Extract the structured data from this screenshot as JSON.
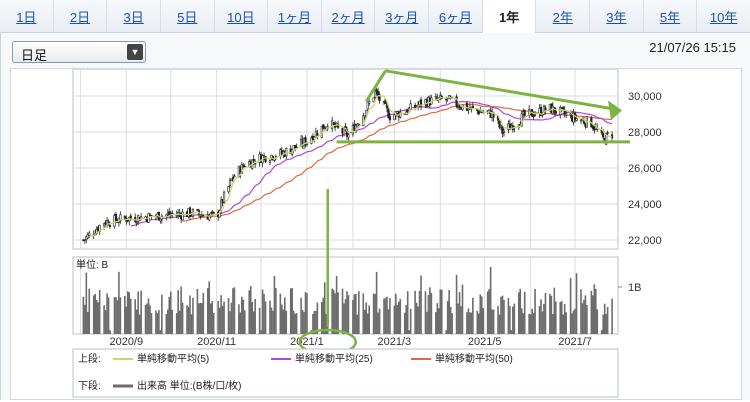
{
  "period_tabs": [
    {
      "label": "1日",
      "active": false
    },
    {
      "label": "2日",
      "active": false
    },
    {
      "label": "3日",
      "active": false
    },
    {
      "label": "5日",
      "active": false
    },
    {
      "label": "10日",
      "active": false
    },
    {
      "label": "1ヶ月",
      "active": false
    },
    {
      "label": "2ヶ月",
      "active": false
    },
    {
      "label": "3ヶ月",
      "active": false
    },
    {
      "label": "6ヶ月",
      "active": false
    },
    {
      "label": "1年",
      "active": true
    },
    {
      "label": "2年",
      "active": false
    },
    {
      "label": "3年",
      "active": false
    },
    {
      "label": "5年",
      "active": false
    },
    {
      "label": "10年",
      "active": false
    }
  ],
  "candle_select": {
    "value": "日足"
  },
  "timestamp": "21/07/26 15:15",
  "chart_data": {
    "type": "candlestick",
    "price_axis": {
      "ticks": [
        "30,000",
        "28,000",
        "26,000",
        "24,000",
        "22,000"
      ],
      "ylim": [
        21500,
        31500
      ]
    },
    "volume_axis": {
      "unit_label": "単位: B",
      "ticks": [
        "1B"
      ]
    },
    "x_ticks": [
      "2020/9",
      "2020/11",
      "2021/1",
      "2021/3",
      "2021/5",
      "2021/7"
    ],
    "price_path": [
      [
        "2020-08-03",
        22000
      ],
      [
        "2020-08-17",
        23000
      ],
      [
        "2020-09-01",
        23200
      ],
      [
        "2020-09-15",
        23300
      ],
      [
        "2020-10-01",
        23400
      ],
      [
        "2020-10-15",
        23500
      ],
      [
        "2020-11-01",
        23300
      ],
      [
        "2020-11-05",
        24200
      ],
      [
        "2020-11-12",
        25500
      ],
      [
        "2020-11-20",
        26200
      ],
      [
        "2020-12-01",
        26600
      ],
      [
        "2020-12-15",
        26800
      ],
      [
        "2020-12-30",
        27400
      ],
      [
        "2021-01-15",
        28500
      ],
      [
        "2021-01-29",
        27800
      ],
      [
        "2021-02-08",
        29000
      ],
      [
        "2021-02-16",
        30200
      ],
      [
        "2021-02-26",
        28900
      ],
      [
        "2021-03-10",
        29200
      ],
      [
        "2021-03-22",
        29700
      ],
      [
        "2021-04-05",
        29800
      ],
      [
        "2021-04-20",
        29300
      ],
      [
        "2021-05-06",
        29000
      ],
      [
        "2021-05-13",
        28000
      ],
      [
        "2021-05-28",
        28900
      ],
      [
        "2021-06-14",
        29300
      ],
      [
        "2021-06-30",
        28800
      ],
      [
        "2021-07-12",
        28500
      ],
      [
        "2021-07-20",
        27600
      ],
      [
        "2021-07-26",
        27900
      ]
    ],
    "legend": {
      "upper_prefix": "上段:",
      "ma5": "単純移動平均(5)",
      "ma25": "単純移動平均(25)",
      "ma50": "単純移動平均(50)",
      "lower_prefix": "下段:",
      "volume": "出来高 単位:(B株/口/枚)"
    },
    "colors": {
      "up": "#ffffff",
      "down": "#222222",
      "ma5": "#c9d66b",
      "ma25": "#b04ad2",
      "ma50": "#e06a3c",
      "volume": "#6c6c6c",
      "annotation": "#7cb342"
    }
  }
}
